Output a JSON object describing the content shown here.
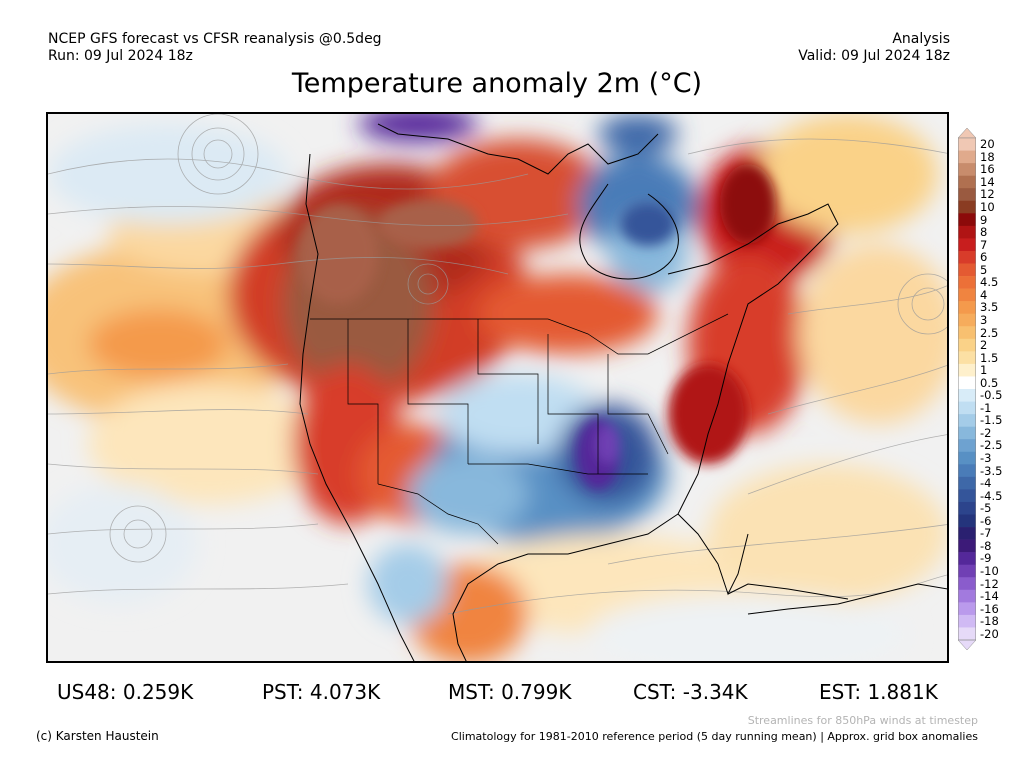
{
  "header": {
    "line1_left": "NCEP GFS forecast vs CFSR reanalysis @0.5deg",
    "line2_left": "Run: 09 Jul 2024 18z",
    "line1_right": "Analysis",
    "line2_right": "Valid: 09 Jul 2024 18z"
  },
  "title": "Temperature anomaly 2m (°C)",
  "colorbar": {
    "labels": [
      "20",
      "18",
      "16",
      "14",
      "12",
      "10",
      "9",
      "8",
      "7",
      "6",
      "5",
      "4.5",
      "4",
      "3.5",
      "3",
      "2.5",
      "2",
      "1.5",
      "1",
      "0.5",
      "-0.5",
      "-1",
      "-1.5",
      "-2",
      "-2.5",
      "-3",
      "-3.5",
      "-4",
      "-4.5",
      "-5",
      "-6",
      "-7",
      "-8",
      "-9",
      "-10",
      "-12",
      "-14",
      "-16",
      "-18",
      "-20"
    ],
    "colors": [
      "#f0c8b4",
      "#e0aa8c",
      "#c88c6c",
      "#b07050",
      "#9a5a40",
      "#8a3c22",
      "#8c0a0a",
      "#b01414",
      "#c81e1e",
      "#d83c2a",
      "#e45a32",
      "#ec7038",
      "#f08440",
      "#f49a4c",
      "#f6ac5c",
      "#f8c070",
      "#fad288",
      "#fce0a4",
      "#fef0cc",
      "#ffffff",
      "#d8ecf8",
      "#c0def2",
      "#a4cce8",
      "#88b8dc",
      "#6ea2d0",
      "#5890c4",
      "#4a7cb8",
      "#3e68a8",
      "#34559a",
      "#2c448c",
      "#24347c",
      "#2a2070",
      "#3c1a78",
      "#54289a",
      "#7040b4",
      "#8a5ccc",
      "#a27ade",
      "#ba9aec",
      "#d0baf4",
      "#e6daf8"
    ]
  },
  "stats": {
    "us48": "US48: 0.259K",
    "pst": "PST: 4.073K",
    "mst": "MST: 0.799K",
    "cst": "CST: -3.34K",
    "est": "EST: 1.881K"
  },
  "footer": {
    "credit": "(c) Karsten Haustein",
    "streamlines_note": "Streamlines for 850hPa winds at timestep",
    "climatology_note": "Climatology for 1981-2010 reference period (5 day running mean) | Approx. grid box anomalies"
  }
}
